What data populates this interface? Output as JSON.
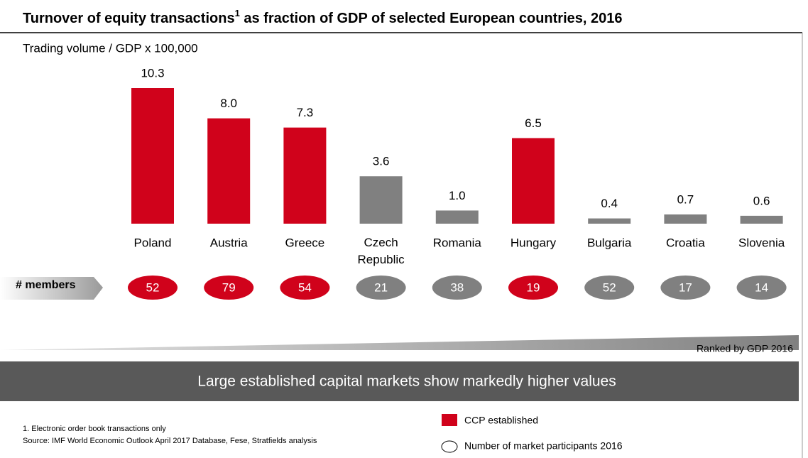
{
  "chart_data": {
    "type": "bar",
    "title_parts": [
      "Turnover of equity transactions",
      "1",
      " as fraction of GDP of selected European countries, 2016"
    ],
    "subtitle": "Trading volume / GDP x 100,000",
    "categories": [
      "Poland",
      "Austria",
      "Greece",
      "Czech Republic",
      "Romania",
      "Hungary",
      "Bulgaria",
      "Croatia",
      "Slovenia"
    ],
    "values": [
      10.3,
      8.0,
      7.3,
      3.6,
      1.0,
      6.5,
      0.4,
      0.7,
      0.6
    ],
    "value_labels": [
      "10.3",
      "8.0",
      "7.3",
      "3.6",
      "1.0",
      "6.5",
      "0.4",
      "0.7",
      "0.6"
    ],
    "colors": [
      "#d0021b",
      "#d0021b",
      "#d0021b",
      "#808080",
      "#808080",
      "#d0021b",
      "#808080",
      "#808080",
      "#808080"
    ],
    "members_label": "# members",
    "members": [
      52,
      79,
      54,
      21,
      38,
      19,
      52,
      17,
      14
    ],
    "ranking_note": "Ranked by GDP 2016",
    "banner": "Large established capital markets show markedly higher values",
    "footnote": "1. Electronic order book transactions only",
    "source": "Source: IMF World Economic Outlook April 2017 Database, Fese, Stratfields analysis",
    "legend": [
      {
        "label": "CCP established",
        "color": "#d0021b"
      },
      {
        "label": "Number of market participants 2016"
      }
    ]
  }
}
